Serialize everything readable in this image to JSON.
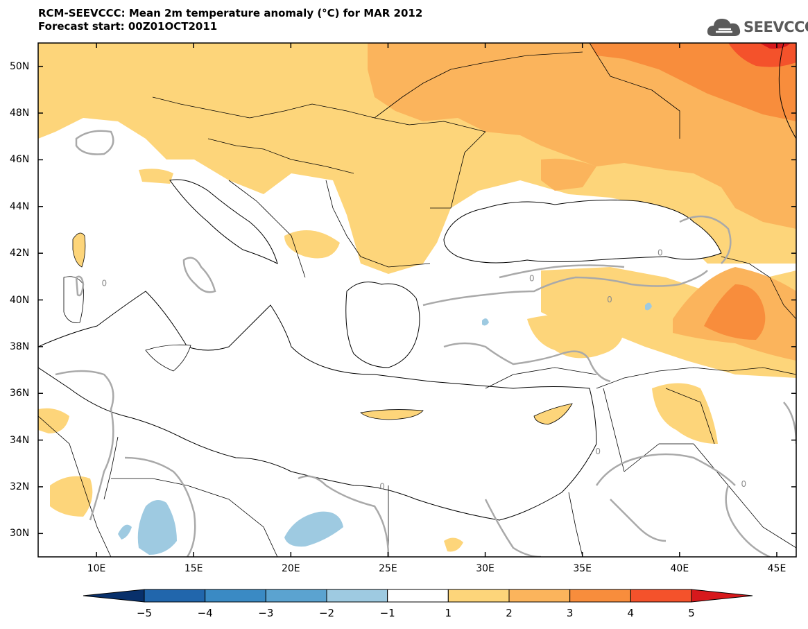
{
  "header": {
    "title_line1": "RCM-SEEVCCC: Mean 2m temperature anomaly (°C) for MAR 2012",
    "title_line2": "Forecast start: 00Z01OCT2011",
    "logo_text": "SEEVCCC",
    "logo_icon": "cloud-icon"
  },
  "map": {
    "variable": "Mean 2m temperature anomaly (°C)",
    "lat_range": [
      29,
      51
    ],
    "lon_range": [
      7,
      46
    ],
    "lat_ticks": [
      {
        "value": 50,
        "label": "50N"
      },
      {
        "value": 48,
        "label": "48N"
      },
      {
        "value": 46,
        "label": "46N"
      },
      {
        "value": 44,
        "label": "44N"
      },
      {
        "value": 42,
        "label": "42N"
      },
      {
        "value": 40,
        "label": "40N"
      },
      {
        "value": 38,
        "label": "38N"
      },
      {
        "value": 36,
        "label": "36N"
      },
      {
        "value": 34,
        "label": "34N"
      },
      {
        "value": 32,
        "label": "32N"
      },
      {
        "value": 30,
        "label": "30N"
      }
    ],
    "lon_ticks": [
      {
        "value": 10,
        "label": "10E"
      },
      {
        "value": 15,
        "label": "15E"
      },
      {
        "value": 20,
        "label": "20E"
      },
      {
        "value": 25,
        "label": "25E"
      },
      {
        "value": 30,
        "label": "30E"
      },
      {
        "value": 35,
        "label": "35E"
      },
      {
        "value": 40,
        "label": "40E"
      },
      {
        "value": 45,
        "label": "45E"
      }
    ],
    "contour_label": "0",
    "contour_labels": [
      {
        "lon": 10.4,
        "lat": 40.6
      },
      {
        "lon": 24.7,
        "lat": 31.9
      },
      {
        "lon": 32.4,
        "lat": 40.8
      },
      {
        "lon": 35.8,
        "lat": 33.4
      },
      {
        "lon": 36.4,
        "lat": 39.9
      },
      {
        "lon": 39.0,
        "lat": 41.9
      },
      {
        "lon": 43.3,
        "lat": 32.0
      }
    ]
  },
  "colorbar": {
    "levels": [
      "-5",
      "-4",
      "-3",
      "-2",
      "-1",
      "1",
      "2",
      "3",
      "4",
      "5"
    ],
    "colors": [
      "#08306b",
      "#2166ac",
      "#3a8ac4",
      "#5ba3d0",
      "#9ecae1",
      "#ffffff",
      "#fdd57a",
      "#fbb45c",
      "#f88d3c",
      "#f4522b",
      "#d7191c"
    ]
  }
}
